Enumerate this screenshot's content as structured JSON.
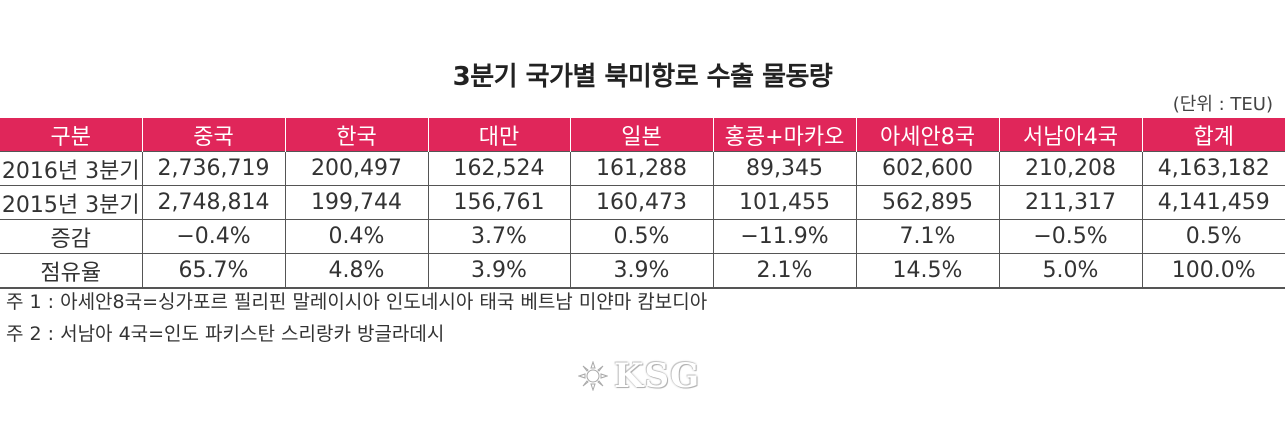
{
  "title": "3분기 국가별 북미항로 수출 물동량",
  "unit": "(단위 : TEU)",
  "table": {
    "headers": [
      "구분",
      "중국",
      "한국",
      "대만",
      "일본",
      "홍콩+마카오",
      "아세안8국",
      "서남아4국",
      "합계"
    ],
    "rows": [
      [
        "2016년 3분기",
        "2,736,719",
        "200,497",
        "162,524",
        "161,288",
        "89,345",
        "602,600",
        "210,208",
        "4,163,182"
      ],
      [
        "2015년 3분기",
        "2,748,814",
        "199,744",
        "156,761",
        "160,473",
        "101,455",
        "562,895",
        "211,317",
        "4,141,459"
      ],
      [
        "증감",
        "−0.4%",
        "0.4%",
        "3.7%",
        "0.5%",
        "−11.9%",
        "7.1%",
        "−0.5%",
        "0.5%"
      ],
      [
        "점유율",
        "65.7%",
        "4.8%",
        "3.9%",
        "3.9%",
        "2.1%",
        "14.5%",
        "5.0%",
        "100.0%"
      ]
    ]
  },
  "notes": [
    "주 1 : 아세안8국=싱가포르 필리핀 말레이시아 인도네시아 태국 베트남 미얀마 캄보디아",
    "주 2 : 서남아 4국=인도 파키스탄 스리랑카 방글라데시"
  ],
  "logo": {
    "text": "KSG",
    "icon": "sun-emblem-icon"
  },
  "colors": {
    "header_bg": "#e0265a",
    "header_text": "#ffffff",
    "text": "#333333",
    "border": "#555555"
  }
}
